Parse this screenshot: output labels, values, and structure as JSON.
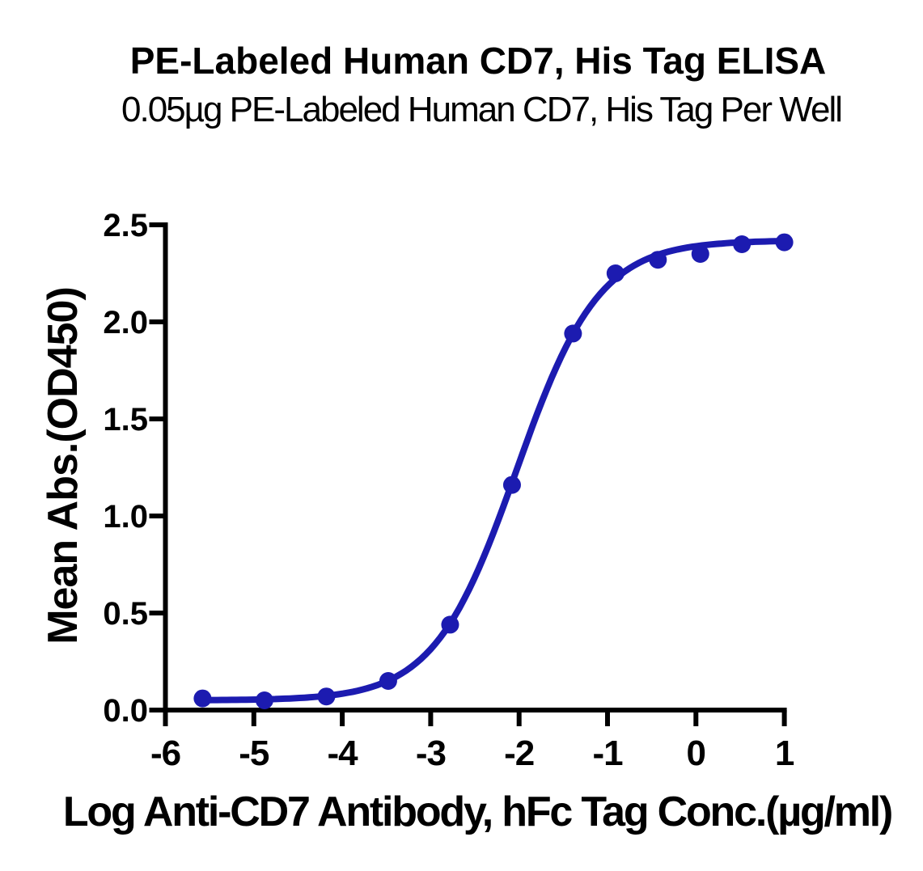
{
  "chart_data": {
    "type": "scatter",
    "title": "PE-Labeled Human CD7, His Tag ELISA",
    "subtitle": "0.05µg PE-Labeled Human CD7, His Tag Per Well",
    "xlabel": "Log Anti-CD7 Antibody, hFc Tag Conc.(µg/ml)",
    "ylabel": "Mean Abs.(OD450)",
    "xlim": [
      -6,
      1
    ],
    "ylim": [
      0,
      2.5
    ],
    "x_tick_values": [
      -6,
      -5,
      -4,
      -3,
      -2,
      -1,
      0,
      1
    ],
    "x_tick_labels": [
      "-6",
      "-5",
      "-4",
      "-3",
      "-2",
      "-1",
      "0",
      "1"
    ],
    "y_tick_values": [
      0,
      0.5,
      1,
      1.5,
      2,
      2.5
    ],
    "y_tick_labels": [
      "0.0",
      "0.5",
      "1.0",
      "1.5",
      "2.0",
      "2.5"
    ],
    "grid": false,
    "legend": false,
    "series": [
      {
        "name": "Anti-CD7 Antibody, hFc Tag",
        "color": "#1c1bb0",
        "points": [
          {
            "x": -5.58,
            "y": 0.06
          },
          {
            "x": -4.88,
            "y": 0.05
          },
          {
            "x": -4.18,
            "y": 0.07
          },
          {
            "x": -3.48,
            "y": 0.15
          },
          {
            "x": -2.78,
            "y": 0.44
          },
          {
            "x": -2.08,
            "y": 1.16
          },
          {
            "x": -1.39,
            "y": 1.94
          },
          {
            "x": -0.91,
            "y": 2.25
          },
          {
            "x": -0.43,
            "y": 2.32
          },
          {
            "x": 0.05,
            "y": 2.35
          },
          {
            "x": 0.52,
            "y": 2.4
          },
          {
            "x": 1.0,
            "y": 2.41
          }
        ],
        "curve_fit": {
          "model": "4PL",
          "bottom": 0.05,
          "top": 2.42,
          "logEC50": -2.03,
          "hill": 0.93
        }
      }
    ]
  }
}
